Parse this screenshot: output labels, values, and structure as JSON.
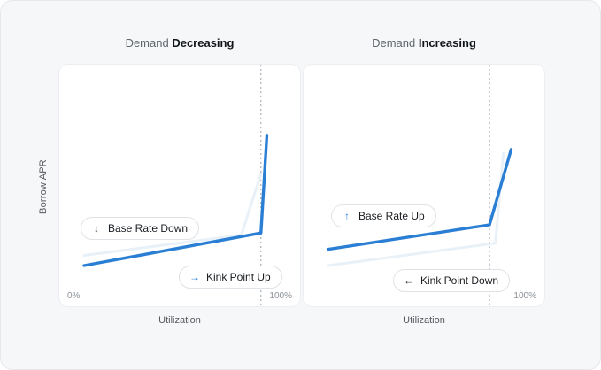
{
  "y_axis_label": "Borrow APR",
  "x_axis_label": "Utilization",
  "colors": {
    "current_line": "#2a7fd4",
    "previous_line": "#e8f1f8",
    "kink_line": "#9aa1a9",
    "blue_arrow": "#2a7fd4"
  },
  "panels": [
    {
      "title_prefix": "Demand",
      "title_emphasis": "Decreasing",
      "x_tick_start": "0%",
      "x_tick_end": "100%",
      "pills": [
        {
          "icon": "arrow-down-icon",
          "arrow": "↓",
          "label": "Base Rate Down"
        },
        {
          "icon": "arrow-right-icon",
          "arrow": "→",
          "label": "Kink Point Up"
        }
      ]
    },
    {
      "title_prefix": "Demand",
      "title_emphasis": "Increasing",
      "x_tick_start": "",
      "x_tick_end": "100%",
      "pills": [
        {
          "icon": "arrow-up-icon",
          "arrow": "↑",
          "label": "Base Rate Up"
        },
        {
          "icon": "arrow-left-icon",
          "arrow": "←",
          "label": "Kink Point Down"
        }
      ]
    }
  ],
  "chart_data": [
    {
      "type": "line",
      "title": "Demand Decreasing",
      "xlabel": "Utilization",
      "ylabel": "Borrow APR",
      "xlim": [
        0,
        100
      ],
      "ylim": [
        0,
        100
      ],
      "kink_utilization": 90,
      "series": [
        {
          "role": "previous",
          "x": [
            0,
            80,
            90
          ],
          "y": [
            15,
            25,
            55
          ]
        },
        {
          "role": "current",
          "x": [
            0,
            90,
            93
          ],
          "y": [
            10,
            26,
            74
          ]
        }
      ],
      "annotations": [
        "Base Rate Down",
        "Kink Point Up"
      ]
    },
    {
      "type": "line",
      "title": "Demand Increasing",
      "xlabel": "Utilization",
      "ylabel": "Borrow APR",
      "xlim": [
        0,
        100
      ],
      "ylim": [
        0,
        100
      ],
      "kink_utilization": 82,
      "series": [
        {
          "role": "previous",
          "x": [
            0,
            85,
            89
          ],
          "y": [
            10,
            21,
            65
          ]
        },
        {
          "role": "current",
          "x": [
            0,
            82,
            93
          ],
          "y": [
            18,
            30,
            67
          ]
        }
      ],
      "annotations": [
        "Base Rate Up",
        "Kink Point Down"
      ]
    }
  ]
}
